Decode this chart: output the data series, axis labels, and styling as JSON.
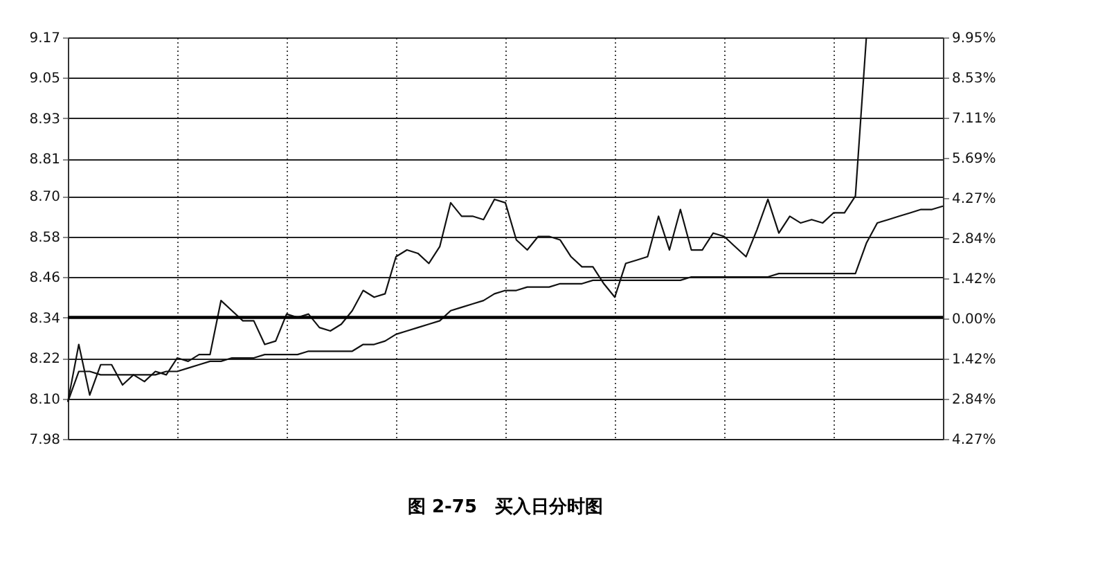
{
  "chart_data": {
    "type": "line",
    "title": "图 2-75　买入日分时图",
    "categories": [
      null,
      null,
      null,
      null,
      null,
      null,
      null,
      null,
      null,
      null,
      null,
      null,
      null,
      null,
      null,
      null,
      null,
      null,
      null,
      null,
      null,
      null,
      null,
      null,
      null,
      null,
      null,
      null,
      null,
      null,
      null,
      null,
      null,
      null,
      null,
      null,
      null,
      null,
      null,
      null,
      null,
      null,
      null,
      null,
      null,
      null,
      null,
      null,
      null,
      null,
      null,
      null,
      null,
      null,
      null,
      null,
      null,
      null,
      null,
      null,
      null,
      null,
      null,
      null,
      null,
      null,
      null,
      null,
      null,
      null,
      null,
      null,
      null,
      null,
      null,
      null,
      null,
      null,
      null,
      null,
      null
    ],
    "series": [
      {
        "color": "#111111",
        "values": [
          8.09,
          8.26,
          8.11,
          8.2,
          8.2,
          8.14,
          8.17,
          8.15,
          8.18,
          8.17,
          8.22,
          8.21,
          8.23,
          8.23,
          8.39,
          8.36,
          8.33,
          8.33,
          8.26,
          8.27,
          8.35,
          8.34,
          8.35,
          8.31,
          8.3,
          8.32,
          8.36,
          8.42,
          8.4,
          8.41,
          8.52,
          8.54,
          8.53,
          8.5,
          8.55,
          8.68,
          8.64,
          8.64,
          8.63,
          8.69,
          8.68,
          8.57,
          8.54,
          8.58,
          8.58,
          8.57,
          8.52,
          8.49,
          8.49,
          8.44,
          8.4,
          8.5,
          8.51,
          8.52,
          8.64,
          8.54,
          8.66,
          8.54,
          8.54,
          8.59,
          8.58,
          8.55,
          8.52,
          8.6,
          8.69,
          8.59,
          8.64,
          8.62,
          8.63,
          8.62,
          8.65,
          8.65,
          8.7,
          9.17,
          null,
          null,
          null,
          null,
          null,
          null,
          null
        ]
      },
      {
        "color": "#111111",
        "values": [
          8.09,
          8.18,
          8.18,
          8.17,
          8.17,
          8.17,
          8.17,
          8.17,
          8.17,
          8.18,
          8.18,
          8.19,
          8.2,
          8.21,
          8.21,
          8.22,
          8.22,
          8.22,
          8.23,
          8.23,
          8.23,
          8.23,
          8.24,
          8.24,
          8.24,
          8.24,
          8.24,
          8.26,
          8.26,
          8.27,
          8.29,
          8.3,
          8.31,
          8.32,
          8.33,
          8.36,
          8.37,
          8.38,
          8.39,
          8.41,
          8.42,
          8.42,
          8.43,
          8.43,
          8.43,
          8.44,
          8.44,
          8.44,
          8.45,
          8.45,
          8.45,
          8.45,
          8.45,
          8.45,
          8.45,
          8.45,
          8.45,
          8.46,
          8.46,
          8.46,
          8.46,
          8.46,
          8.46,
          8.46,
          8.46,
          8.47,
          8.47,
          8.47,
          8.47,
          8.47,
          8.47,
          8.47,
          8.47,
          8.56,
          8.62,
          8.63,
          8.64,
          8.65,
          8.66,
          8.66,
          8.67
        ]
      }
    ],
    "ylim": [
      7.98,
      9.17
    ],
    "yticks": [
      7.98,
      {
        "value": 8.1,
        "label": "8.10"
      },
      8.22,
      8.34,
      8.46,
      8.58,
      {
        "value": 8.7,
        "label": "8.70"
      },
      8.81,
      8.93,
      9.05,
      9.17
    ],
    "y2lim": [
      -4.27,
      9.95
    ],
    "y2ticks": [
      {
        "value": -4.27,
        "label": "4.27%"
      },
      {
        "value": -2.84,
        "label": "2.84%"
      },
      {
        "value": -1.42,
        "label": "1.42%"
      },
      {
        "value": 0,
        "label": "0.00%"
      },
      {
        "value": 1.42,
        "label": "1.42%"
      },
      {
        "value": 2.84,
        "label": "2.84%"
      },
      {
        "value": 4.27,
        "label": "4.27%"
      },
      {
        "value": 5.69,
        "label": "5.69%"
      },
      {
        "value": 7.11,
        "label": "7.11%"
      },
      {
        "value": 8.53,
        "label": "8.53%"
      },
      {
        "value": 9.95,
        "label": "9.95%"
      }
    ],
    "ref_lines": [
      {
        "axis": "y",
        "value": 8.34
      }
    ],
    "grid": true,
    "marker": "none",
    "line_style": "solid"
  }
}
